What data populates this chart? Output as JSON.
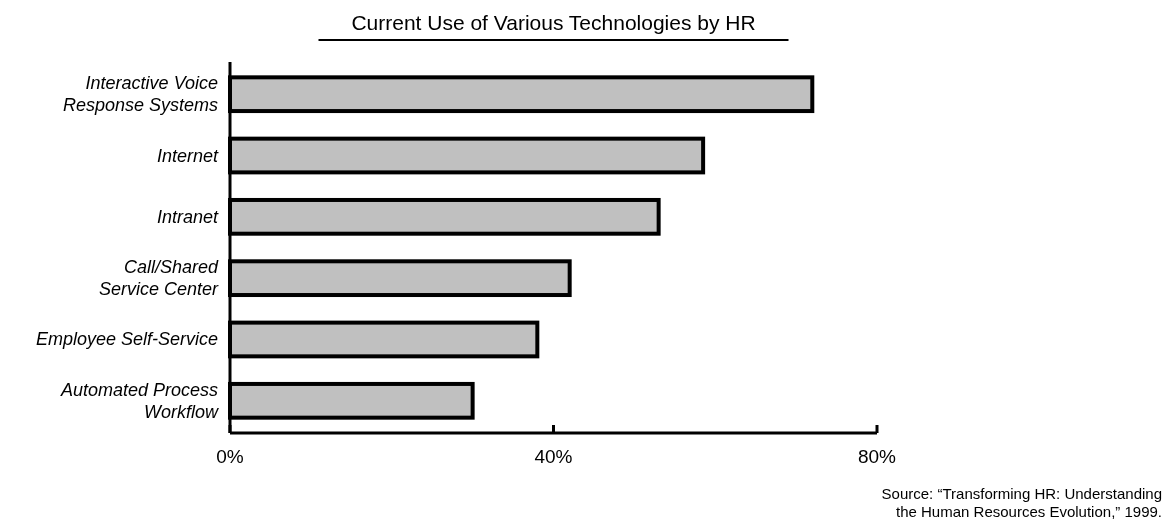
{
  "chart_data": {
    "type": "bar",
    "orientation": "horizontal",
    "title": "Current Use of Various Technologies by HR",
    "categories": [
      "Interactive Voice\nResponse Systems",
      "Internet",
      "Intranet",
      "Call/Shared\nService Center",
      "Employee Self-Service",
      "Automated Process\nWorkflow"
    ],
    "values": [
      72,
      58.5,
      53,
      42,
      38,
      30
    ],
    "color": "#c0c0c0",
    "xlim": [
      0,
      80
    ],
    "xticks": [
      {
        "value": 0,
        "label": "0%"
      },
      {
        "value": 40,
        "label": "40%"
      },
      {
        "value": 80,
        "label": "80%"
      }
    ],
    "grid": false,
    "annotations": [
      "Source: “Transforming HR: Understanding\nthe Human Resources Evolution,” 1999."
    ]
  }
}
